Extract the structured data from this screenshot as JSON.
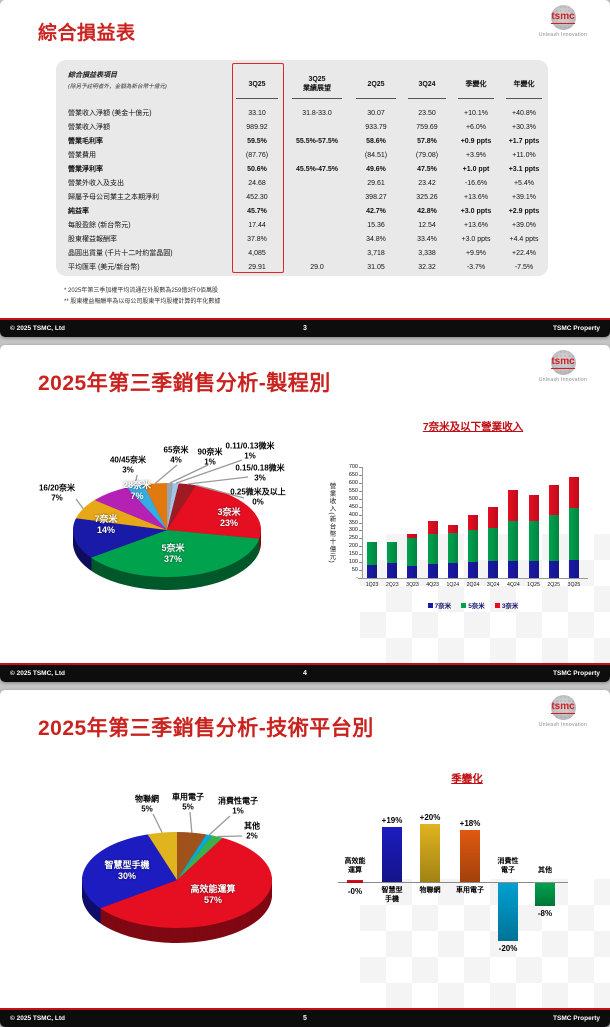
{
  "logo": {
    "brand": "tsmc",
    "tagline": "Unleash Innovation"
  },
  "slides": [
    {
      "title": "綜合損益表",
      "table": {
        "header_label": "綜合損益表項目",
        "header_note": "(除另予註明者外，金額為新台幣十億元)",
        "highlight_column": "3Q25",
        "columns": [
          "3Q25",
          "3Q25\n業績展望",
          "2Q25",
          "3Q24",
          "季變化",
          "年變化"
        ],
        "rows": [
          {
            "label": "營業收入淨額 (美金十億元)",
            "bold": false,
            "values": [
              "33.10",
              "31.8-33.0",
              "30.07",
              "23.50",
              "+10.1%",
              "+40.8%"
            ]
          },
          {
            "label": "營業收入淨額",
            "bold": false,
            "values": [
              "989.92",
              "",
              "933.79",
              "759.69",
              "+6.0%",
              "+30.3%"
            ]
          },
          {
            "label": "營業毛利率",
            "bold": true,
            "values": [
              "59.5%",
              "55.5%-57.5%",
              "58.6%",
              "57.8%",
              "+0.9 ppts",
              "+1.7 ppts"
            ]
          },
          {
            "label": "營業費用",
            "bold": false,
            "values": [
              "(87.76)",
              "",
              "(84.51)",
              "(79.08)",
              "+3.9%",
              "+11.0%"
            ]
          },
          {
            "label": "營業淨利率",
            "bold": true,
            "values": [
              "50.6%",
              "45.5%-47.5%",
              "49.6%",
              "47.5%",
              "+1.0 ppt",
              "+3.1 ppts"
            ]
          },
          {
            "label": "營業外收入及支出",
            "bold": false,
            "values": [
              "24.68",
              "",
              "29.61",
              "23.42",
              "-16.6%",
              "+5.4%"
            ]
          },
          {
            "label": "歸屬予母公司業主之本期淨利",
            "bold": false,
            "values": [
              "452.30",
              "",
              "398.27",
              "325.26",
              "+13.6%",
              "+39.1%"
            ]
          },
          {
            "label": "純益率",
            "bold": true,
            "values": [
              "45.7%",
              "",
              "42.7%",
              "42.8%",
              "+3.0 ppts",
              "+2.9 ppts"
            ]
          },
          {
            "label": "每股盈餘 (新台幣元)",
            "bold": false,
            "values": [
              "17.44",
              "",
              "15.36",
              "12.54",
              "+13.6%",
              "+39.0%"
            ]
          },
          {
            "label": "股東權益報酬率",
            "bold": false,
            "values": [
              "37.8%",
              "",
              "34.8%",
              "33.4%",
              "+3.0 ppts",
              "+4.4 ppts"
            ]
          },
          {
            "label": "晶圓出貨量 (千片十二吋約當晶圓)",
            "bold": false,
            "values": [
              "4,085",
              "",
              "3,718",
              "3,338",
              "+9.9%",
              "+22.4%"
            ]
          },
          {
            "label": "平均匯率 (美元/新台幣)",
            "bold": false,
            "values": [
              "29.91",
              "29.0",
              "31.05",
              "32.32",
              "-3.7%",
              "-7.5%"
            ]
          }
        ]
      },
      "footnotes": [
        "*  2025年第三季加權平均流通在外股數為259億3仟0佰萬股",
        "** 股東權益報酬率為以母公司股東平均股權計算的年化數據"
      ],
      "footer": {
        "left": "© 2025 TSMC, Ltd",
        "page": "3",
        "right": "TSMC Property"
      }
    },
    {
      "title": "2025年第三季銷售分析-製程別",
      "footer": {
        "left": "© 2025 TSMC, Ltd",
        "page": "4",
        "right": "TSMC Property"
      }
    },
    {
      "title": "2025年第三季銷售分析-技術平台別",
      "footer": {
        "left": "© 2025 TSMC, Ltd",
        "page": "5",
        "right": "TSMC Property"
      }
    }
  ],
  "chart_data": [
    {
      "type": "pie",
      "name": "wafer-revenue-by-process",
      "unit": "%",
      "slices": [
        {
          "label": "90奈米",
          "value": 1,
          "color": "#9aa3b0"
        },
        {
          "label": "0.11/0.13微米",
          "value": 1,
          "color": "#a3c6e8"
        },
        {
          "label": "0.15/0.18微米",
          "value": 3,
          "color": "#9e1b23"
        },
        {
          "label": "0.25微米及以上",
          "value": 0,
          "color": "#8a8a8a"
        },
        {
          "label": "3奈米",
          "value": 23,
          "color": "#e60f22"
        },
        {
          "label": "5奈米",
          "value": 37,
          "color": "#00a24e"
        },
        {
          "label": "7奈米",
          "value": 14,
          "color": "#1a1aa8"
        },
        {
          "label": "16/20奈米",
          "value": 7,
          "color": "#e6a817"
        },
        {
          "label": "28奈米",
          "value": 7,
          "color": "#b520b5"
        },
        {
          "label": "40/45奈米",
          "value": 3,
          "color": "#35ace2"
        },
        {
          "label": "65奈米",
          "value": 4,
          "color": "#e2790f"
        }
      ]
    },
    {
      "type": "bar",
      "stacked": true,
      "title": "7奈米及以下營業收入",
      "ylabel": "營業收入(新台幣十億元)",
      "ylim": [
        0,
        700
      ],
      "ytick_step": 50,
      "zero_tick_label": "-",
      "legend_position": "bottom",
      "categories": [
        "1Q23",
        "2Q23",
        "3Q23",
        "4Q23",
        "1Q24",
        "2Q24",
        "3Q24",
        "4Q24",
        "1Q25",
        "2Q25",
        "3Q25"
      ],
      "series": [
        {
          "name": "7奈米",
          "color": "#1a1aa8",
          "values": [
            85,
            95,
            75,
            90,
            95,
            100,
            110,
            105,
            105,
            110,
            115
          ]
        },
        {
          "name": "5奈米",
          "color": "#00a24e",
          "values": [
            145,
            135,
            175,
            190,
            190,
            205,
            205,
            255,
            255,
            290,
            325
          ]
        },
        {
          "name": "3奈米",
          "color": "#e60f22",
          "values": [
            0,
            0,
            30,
            80,
            50,
            95,
            130,
            195,
            165,
            185,
            200
          ]
        }
      ]
    },
    {
      "type": "pie",
      "name": "revenue-by-platform",
      "unit": "%",
      "slices": [
        {
          "label": "車用電子",
          "value": 5,
          "color": "#a0521d"
        },
        {
          "label": "消費性電子",
          "value": 1,
          "color": "#00aadc"
        },
        {
          "label": "其他",
          "value": 2,
          "color": "#3cb04a"
        },
        {
          "label": "高效能運算",
          "value": 57,
          "color": "#e60f22"
        },
        {
          "label": "智慧型手機",
          "value": 30,
          "color": "#1c1cc0"
        },
        {
          "label": "物聯網",
          "value": 5,
          "color": "#e0b41e"
        }
      ]
    },
    {
      "type": "bar",
      "title": "季變化",
      "unit": "%",
      "categories": [
        "高效能運算",
        "智慧型手機",
        "物聯網",
        "車用電子",
        "消費性電子",
        "其他"
      ],
      "category_display": [
        "高效能\n運算",
        "智慧型\n手機",
        "物聯網",
        "車用電子",
        "消費性\n電子",
        "其他"
      ],
      "values": [
        0,
        19,
        20,
        18,
        -20,
        -8
      ],
      "value_labels": [
        "-0%",
        "+19%",
        "+20%",
        "+18%",
        "-20%",
        "-8%"
      ],
      "colors": [
        "#e60f22",
        "#1c1cc0",
        "#e0b41e",
        "#e05a10",
        "#00a0d2",
        "#00a24e"
      ]
    }
  ]
}
